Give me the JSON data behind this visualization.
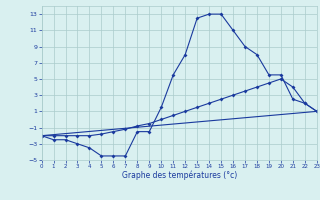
{
  "xlabel": "Graphe des températures (°c)",
  "line1_x": [
    0,
    1,
    2,
    3,
    4,
    5,
    6,
    7,
    8,
    9,
    10,
    11,
    12,
    13,
    14,
    15,
    16,
    17,
    18,
    19,
    20,
    21,
    22,
    23
  ],
  "line1_y": [
    -2,
    -2.5,
    -2.5,
    -3,
    -3.5,
    -4.5,
    -4.5,
    -4.5,
    -1.5,
    -1.5,
    1.5,
    5.5,
    8,
    12.5,
    13,
    13,
    11,
    9,
    8,
    5.5,
    5.5,
    2.5,
    2,
    1
  ],
  "line2_x": [
    0,
    1,
    2,
    3,
    4,
    5,
    6,
    7,
    8,
    9,
    10,
    11,
    12,
    13,
    14,
    15,
    16,
    17,
    18,
    19,
    20,
    21,
    22,
    23
  ],
  "line2_y": [
    -2,
    -2,
    -2,
    -2,
    -2,
    -1.8,
    -1.5,
    -1.2,
    -0.8,
    -0.5,
    0,
    0.5,
    1,
    1.5,
    2,
    2.5,
    3,
    3.5,
    4,
    4.5,
    5,
    4,
    2,
    1
  ],
  "line3_x": [
    0,
    23
  ],
  "line3_y": [
    -2,
    1
  ],
  "line_color": "#1a3a9e",
  "bg_color": "#d9f0f0",
  "grid_color": "#aacccc",
  "xlim": [
    0,
    23
  ],
  "ylim": [
    -5,
    14
  ],
  "yticks": [
    -5,
    -3,
    -1,
    1,
    3,
    5,
    7,
    9,
    11,
    13
  ],
  "xticks": [
    0,
    1,
    2,
    3,
    4,
    5,
    6,
    7,
    8,
    9,
    10,
    11,
    12,
    13,
    14,
    15,
    16,
    17,
    18,
    19,
    20,
    21,
    22,
    23
  ]
}
